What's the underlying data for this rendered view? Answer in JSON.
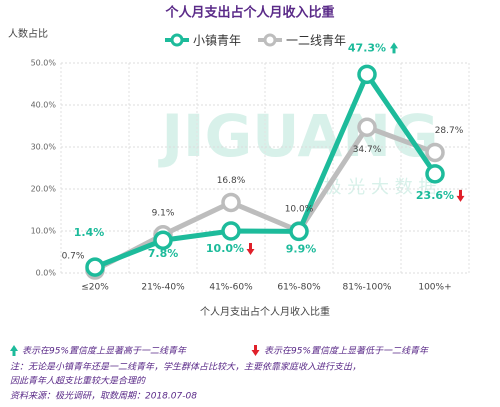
{
  "chart_data": {
    "type": "line",
    "title": "个人月支出占个人月收入比重",
    "y_label": "人数占比",
    "x_label": "个人月支出占个人月收入比重",
    "watermark": [
      "JIGUANG",
      "极 光 大 数 据"
    ],
    "categories": [
      "≤20%",
      "21%-40%",
      "41%-60%",
      "61%-80%",
      "81%-100%",
      "100%+"
    ],
    "series": [
      {
        "name": "小镇青年",
        "color": "#1dbb9b",
        "values": [
          1.4,
          7.8,
          10.0,
          9.9,
          47.3,
          23.6
        ],
        "value_labels": [
          "1.4%",
          "7.8%",
          "10.0%",
          "9.9%",
          "47.3%",
          "23.6%"
        ],
        "significance": [
          null,
          null,
          "down",
          null,
          "up",
          "down"
        ]
      },
      {
        "name": "一二线青年",
        "color": "#bdbdbd",
        "values": [
          0.7,
          9.1,
          16.8,
          10.0,
          34.7,
          28.7
        ],
        "value_labels": [
          "0.7%",
          "9.1%",
          "16.8%",
          "10.0%",
          "34.7%",
          "28.7%"
        ]
      }
    ],
    "ylim": [
      0,
      50
    ],
    "yticks": [
      {
        "value": 0,
        "label": "0.0%"
      },
      {
        "value": 10,
        "label": "10.0%"
      },
      {
        "value": 20,
        "label": "20.0%"
      },
      {
        "value": 30,
        "label": "30.0%"
      },
      {
        "value": 40,
        "label": "40.0%"
      },
      {
        "value": 50,
        "label": "50.0%"
      }
    ],
    "grid": true,
    "notes": {
      "up": "表示在95%置信度上显著高于一二线青年",
      "down": "表示在95%置信度上显著低于一二线青年",
      "lines": [
        "注：无论是小镇青年还是一二线青年，学生群体占比较大，主要依靠家庭收入进行支出，",
        "因此青年人超支比重较大是合理的",
        "资料来源：极光调研，取数周期：2018.07-08"
      ]
    }
  }
}
